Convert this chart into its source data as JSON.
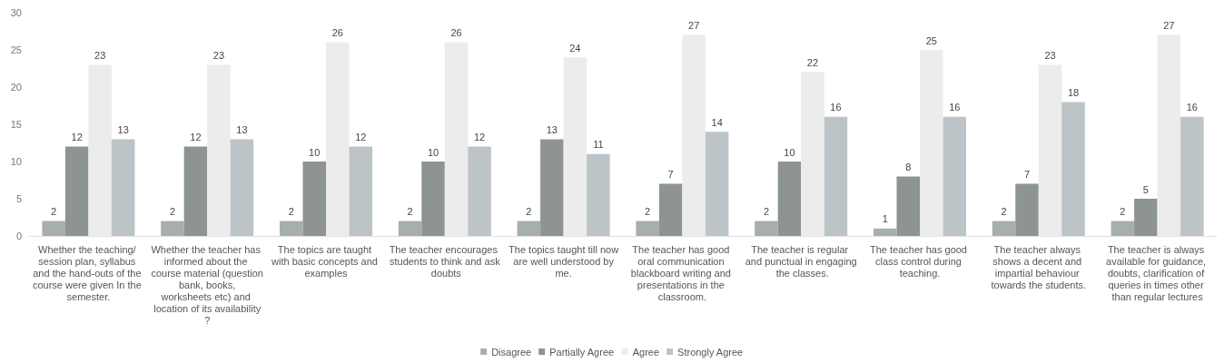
{
  "chart_data": {
    "type": "bar",
    "categories": [
      "Whether the teaching/ session plan, syllabus and the hand-outs of the course were given In the semester.",
      "Whether the teacher has informed about the course material (question bank, books, worksheets etc) and location of its availability?",
      "The topics are taught with basic concepts and examples",
      "The teacher encourages students to think and ask doubts",
      "The topics taught till now are well understood by me.",
      "The teacher has good oral communication blackboard writing and presentations in the classroom.",
      "The teacher is regular and punctual in engaging the classes.",
      "The teacher has good class control during teaching.",
      "The teacher always shows a decent and impartial behaviour towards the students.",
      "The teacher is always available for guidance, doubts, clarification of queries in times other than regular lectures"
    ],
    "series": [
      {
        "name": "Disagree",
        "color": "#a7afae",
        "values": [
          2,
          2,
          2,
          2,
          2,
          2,
          2,
          1,
          2,
          2
        ]
      },
      {
        "name": "Partially Agree",
        "color": "#8d9493",
        "values": [
          12,
          12,
          10,
          10,
          13,
          7,
          10,
          8,
          7,
          5
        ]
      },
      {
        "name": "Agree",
        "color": "#ececec",
        "values": [
          23,
          23,
          26,
          26,
          24,
          27,
          22,
          25,
          23,
          27
        ]
      },
      {
        "name": "Strongly Agree",
        "color": "#bcc4c8",
        "values": [
          13,
          13,
          12,
          12,
          11,
          14,
          16,
          16,
          18,
          16
        ]
      }
    ],
    "ylim": [
      0,
      30
    ],
    "yticks": [
      0,
      5,
      10,
      15,
      20,
      25,
      30
    ],
    "grid": false,
    "data_labels": true,
    "legend": "bottom"
  }
}
